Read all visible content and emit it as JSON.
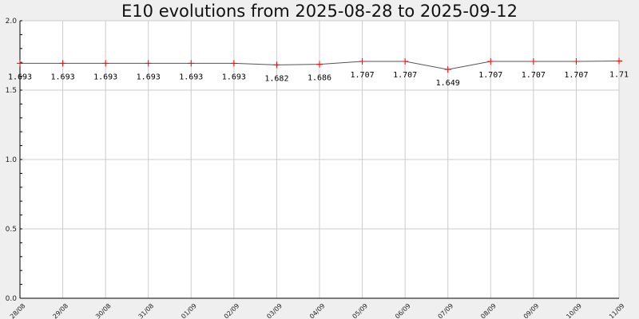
{
  "chart_data": {
    "type": "line",
    "title": "E10 evolutions from 2025-08-28 to 2025-09-12",
    "xlabel": "",
    "ylabel": "",
    "categories": [
      "28/08",
      "29/08",
      "30/08",
      "31/08",
      "01/09",
      "02/09",
      "03/09",
      "04/09",
      "05/09",
      "06/09",
      "07/09",
      "08/09",
      "09/09",
      "10/09",
      "11/09"
    ],
    "series": [
      {
        "values": [
          1.693,
          1.693,
          1.693,
          1.693,
          1.693,
          1.693,
          1.682,
          1.686,
          1.707,
          1.707,
          1.649,
          1.707,
          1.707,
          1.707,
          1.71
        ]
      }
    ],
    "data_labels": [
      "1.693",
      "1.693",
      "1.693",
      "1.693",
      "1.693",
      "1.693",
      "1.682",
      "1.686",
      "1.707",
      "1.707",
      "1.649",
      "1.707",
      "1.707",
      "1.707",
      "1.71"
    ],
    "y_ticks": [
      "0.0",
      "0.5",
      "1.0",
      "1.5",
      "2.0"
    ],
    "ylim": [
      0,
      2
    ],
    "grid": true,
    "colors": {
      "background": "#efefef",
      "plot_background": "#ffffff",
      "grid": "#cccccc",
      "line": "#555555",
      "marker": "#ff0000"
    }
  }
}
